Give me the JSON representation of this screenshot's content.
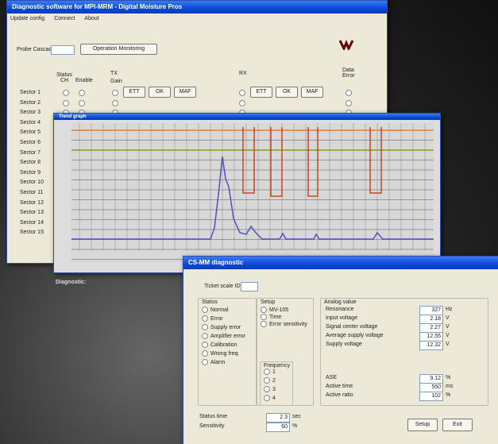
{
  "main_window": {
    "title": "Diagnostic software for MPI-MRM - Digital Moisture Pros",
    "menu": [
      "Update config",
      "Connect",
      "About"
    ],
    "probe_label": "Probe Cascade",
    "button": "Operation Monitoring",
    "columns": {
      "status": "Status CH",
      "enable": "Enable",
      "tx": "TX",
      "rx": "RX",
      "gain": "Gain",
      "data_error": "Data Error"
    },
    "tx_buttons": [
      "ETT",
      "OK",
      "MAF"
    ],
    "sectors": [
      "Sector 1",
      "Sector 2",
      "Sector 3",
      "Sector 4",
      "Sector 5",
      "Sector 6",
      "Sector 7",
      "Sector 8",
      "Sector 9",
      "Sector 10",
      "Sector 11",
      "Sector 12",
      "Sector 13",
      "Sector 14",
      "Sector 15"
    ],
    "diagnostic_label": "Diagnostic:"
  },
  "chart_window": {
    "title": "Trend graph"
  },
  "dialog": {
    "title": "CS-MM diagnostic",
    "scale_label": "Ticket scale ID",
    "status": {
      "title": "Status",
      "options": [
        "Normal",
        "Error",
        "Supply error",
        "Amplifier error",
        "Calibration",
        "Wrong freq.",
        "Alarm"
      ]
    },
    "setup": {
      "title": "Setup",
      "options": [
        "MV-105",
        "Time",
        "Error sensitivity"
      ]
    },
    "frequency": {
      "title": "Frequency",
      "options": [
        "1",
        "2",
        "3",
        "4"
      ]
    },
    "analog": {
      "title": "Analog value",
      "rows": [
        {
          "label": "Resonance",
          "value": "327",
          "unit": "Hz"
        },
        {
          "label": "Input voltage",
          "value": "2.18",
          "unit": "V"
        },
        {
          "label": "Signal center voltage",
          "value": "2.27",
          "unit": "V"
        },
        {
          "label": "Average supply voltage",
          "value": "12.55",
          "unit": "V"
        },
        {
          "label": "Supply voltage",
          "value": "12.32",
          "unit": "V"
        }
      ]
    },
    "extra": [
      {
        "label": "ASE",
        "value": "9.12",
        "unit": "%"
      },
      {
        "label": "Active time",
        "value": "550",
        "unit": "ms"
      },
      {
        "label": "Active ratio",
        "value": "102",
        "unit": "%"
      }
    ],
    "bottom": [
      {
        "label": "Status time",
        "value": "2.3",
        "unit": "sec"
      },
      {
        "label": "Sensitivity",
        "value": "60",
        "unit": "%"
      }
    ],
    "buttons": [
      "Setup",
      "Exit"
    ]
  }
}
